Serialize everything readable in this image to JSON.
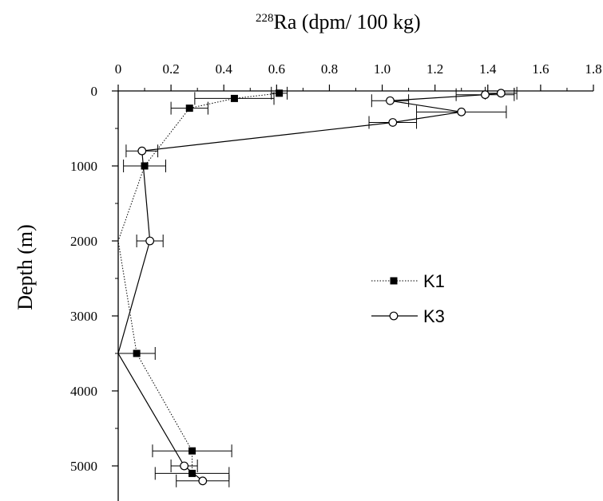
{
  "chart_data": {
    "type": "line",
    "title": {
      "superscript": "228",
      "text": "Ra (dpm/ 100 kg)"
    },
    "xlabel_position": "top",
    "ylabel": "Depth (m)",
    "xlim": [
      0,
      1.8
    ],
    "ylim": [
      0,
      5500
    ],
    "y_inverted": true,
    "x_ticks": [
      "0",
      "0.2",
      "0.4",
      "0.6",
      "0.8",
      "1.0",
      "1.2",
      "1.4",
      "1.6",
      "1.8"
    ],
    "y_ticks": [
      "0",
      "1000",
      "2000",
      "3000",
      "4000",
      "5000"
    ],
    "legend_position": "center-right",
    "series": [
      {
        "name": "K1",
        "marker": "filled-square",
        "line_style": "dotted",
        "color": "#000000",
        "points": [
          {
            "x": 0.61,
            "y": 30,
            "err": 0.03
          },
          {
            "x": 0.44,
            "y": 100,
            "err": 0.15
          },
          {
            "x": 0.27,
            "y": 230,
            "err": 0.07
          },
          {
            "x": 0.1,
            "y": 1000,
            "err": 0.08
          },
          {
            "x": 0.0,
            "y": 2000,
            "err": 0
          },
          {
            "x": 0.07,
            "y": 3500,
            "err": 0.07
          },
          {
            "x": 0.28,
            "y": 4800,
            "err": 0.15
          },
          {
            "x": 0.28,
            "y": 5100,
            "err": 0.14
          }
        ]
      },
      {
        "name": "K3",
        "marker": "open-circle",
        "line_style": "solid",
        "color": "#000000",
        "points": [
          {
            "x": 1.45,
            "y": 30,
            "err": 0.06
          },
          {
            "x": 1.39,
            "y": 50,
            "err": 0.11
          },
          {
            "x": 1.03,
            "y": 130,
            "err": 0.07
          },
          {
            "x": 1.3,
            "y": 280,
            "err": 0.17
          },
          {
            "x": 1.04,
            "y": 420,
            "err": 0.09
          },
          {
            "x": 0.09,
            "y": 800,
            "err": 0.06
          },
          {
            "x": 0.12,
            "y": 2000,
            "err": 0.05
          },
          {
            "x": 0.0,
            "y": 3500,
            "err": 0
          },
          {
            "x": 0.25,
            "y": 5000,
            "err": 0.05
          },
          {
            "x": 0.32,
            "y": 5200,
            "err": 0.1
          }
        ]
      }
    ]
  }
}
